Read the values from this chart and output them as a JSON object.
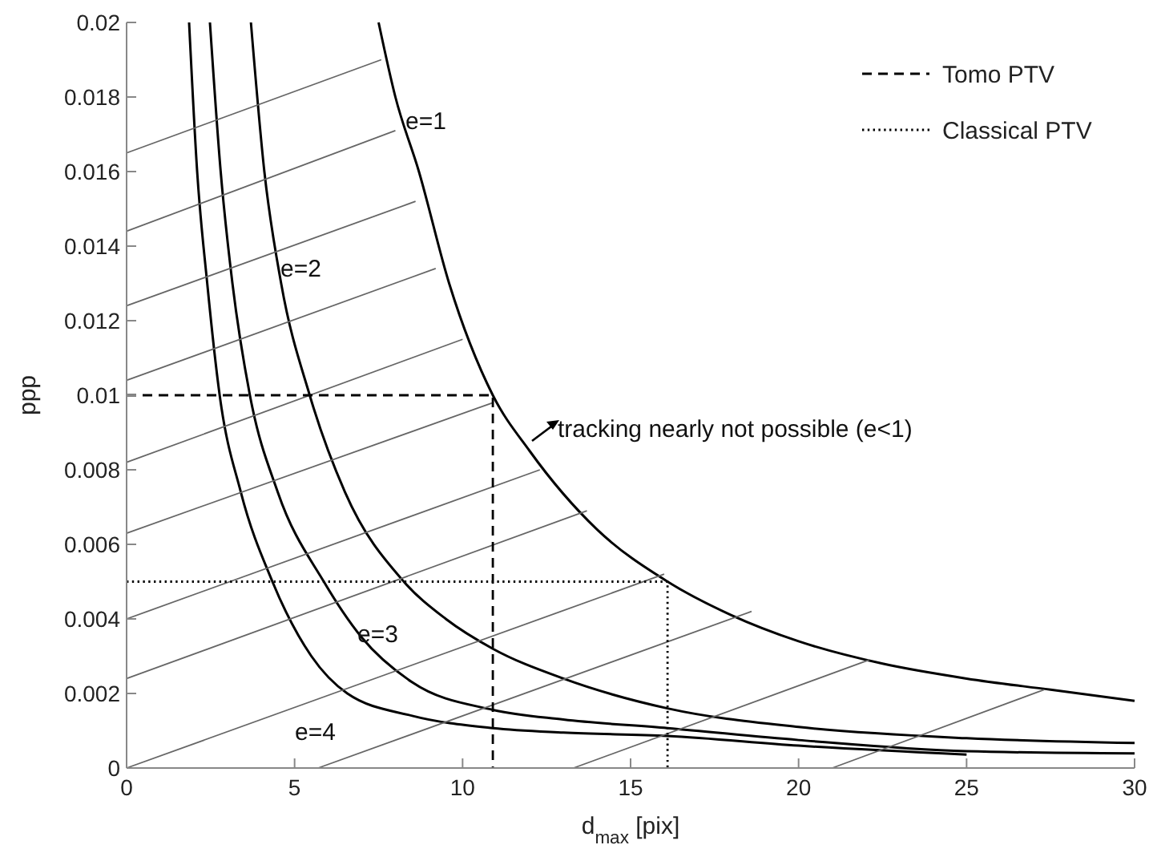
{
  "chart_data": {
    "type": "line",
    "xlabel": "d$_{max}$ [pix]",
    "ylabel": "ppp",
    "xlim": [
      0,
      30
    ],
    "ylim": [
      0,
      0.02
    ],
    "xticks": [
      0,
      5,
      10,
      15,
      20,
      25,
      30
    ],
    "yticks": [
      0,
      0.002,
      0.004,
      0.006,
      0.008,
      0.01,
      0.012,
      0.014,
      0.016,
      0.018,
      0.02
    ],
    "grid": false,
    "legend": "top right",
    "marker": "none",
    "series": [
      {
        "color": "#000000",
        "x": [
          7.5,
          8,
          8.7,
          9.6,
          10.9,
          12,
          14,
          16.1,
          18,
          20,
          22.5,
          25,
          27.5,
          30
        ],
        "values": [
          0.02,
          0.018,
          0.016,
          0.013,
          0.01,
          0.0085,
          0.0064,
          0.005,
          0.0041,
          0.0034,
          0.0028,
          0.0024,
          0.0021,
          0.0018
        ]
      },
      {
        "color": "#000000",
        "x": [
          3.7,
          4.1,
          4.6,
          5.45,
          6.5,
          8.25,
          9.5,
          10.9,
          13,
          16.1,
          20,
          25,
          30
        ],
        "values": [
          0.02,
          0.016,
          0.013,
          0.01,
          0.0074,
          0.005,
          0.004,
          0.0032,
          0.0024,
          0.0016,
          0.0011,
          0.0008,
          0.00067
        ]
      },
      {
        "color": "#000000",
        "x": [
          2.48,
          2.8,
          3.15,
          3.67,
          4.5,
          5.87,
          7,
          8.5,
          10.9,
          13,
          16.1,
          20,
          25,
          30
        ],
        "values": [
          0.02,
          0.016,
          0.013,
          0.01,
          0.0074,
          0.005,
          0.0035,
          0.0023,
          0.00156,
          0.0013,
          0.00107,
          0.00075,
          0.00045,
          0.00039
        ]
      },
      {
        "color": "#000000",
        "x": [
          1.86,
          2.1,
          2.4,
          2.77,
          3.4,
          4.34,
          5.5,
          6.57,
          8.5,
          10.9,
          13,
          16.1,
          20,
          25
        ],
        "values": [
          0.02,
          0.016,
          0.013,
          0.01,
          0.0074,
          0.005,
          0.003,
          0.002,
          0.0014,
          0.00107,
          0.00095,
          0.00086,
          0.0006,
          0.00036
        ]
      },
      {
        "color": "#666666",
        "x": [
          0,
          7.58
        ],
        "values": [
          0.0165,
          0.019
        ]
      },
      {
        "color": "#666666",
        "x": [
          0,
          8.0
        ],
        "values": [
          0.0144,
          0.0171
        ]
      },
      {
        "color": "#666666",
        "x": [
          0,
          8.6
        ],
        "values": [
          0.0124,
          0.0152
        ]
      },
      {
        "color": "#666666",
        "x": [
          0,
          9.2
        ],
        "values": [
          0.0104,
          0.0134
        ]
      },
      {
        "color": "#666666",
        "x": [
          0,
          10.0
        ],
        "values": [
          0.0082,
          0.0115
        ]
      },
      {
        "color": "#666666",
        "x": [
          0,
          10.9
        ],
        "values": [
          0.0063,
          0.0098
        ]
      },
      {
        "color": "#666666",
        "x": [
          0,
          12.3
        ],
        "values": [
          0.004,
          0.008
        ]
      },
      {
        "color": "#666666",
        "x": [
          0,
          13.7
        ],
        "values": [
          0.0024,
          0.0069
        ]
      },
      {
        "color": "#666666",
        "x": [
          0,
          16.0
        ],
        "values": [
          0,
          0.0052
        ]
      },
      {
        "color": "#666666",
        "x": [
          5.7,
          18.6
        ],
        "values": [
          0,
          0.0042
        ]
      },
      {
        "color": "#666666",
        "x": [
          13.3,
          22.1
        ],
        "values": [
          0,
          0.0029
        ]
      },
      {
        "color": "#666666",
        "x": [
          21.0,
          27.3
        ],
        "values": [
          0,
          0.0021
        ]
      },
      {
        "name": "Tomo PTV",
        "color": "#000000",
        "line_style": "dashed",
        "x": [
          0,
          10.9,
          10.9
        ],
        "values": [
          0.01,
          0.01,
          0
        ]
      },
      {
        "name": "Classical PTV",
        "color": "#000000",
        "line_style": "dotted",
        "x": [
          0,
          16.1,
          16.1
        ],
        "values": [
          0.005,
          0.005,
          0
        ]
      }
    ],
    "annotations": [
      "e=1",
      "e=2",
      "e=3",
      "e=4",
      "tracking nearly not possible (e<1)"
    ]
  }
}
